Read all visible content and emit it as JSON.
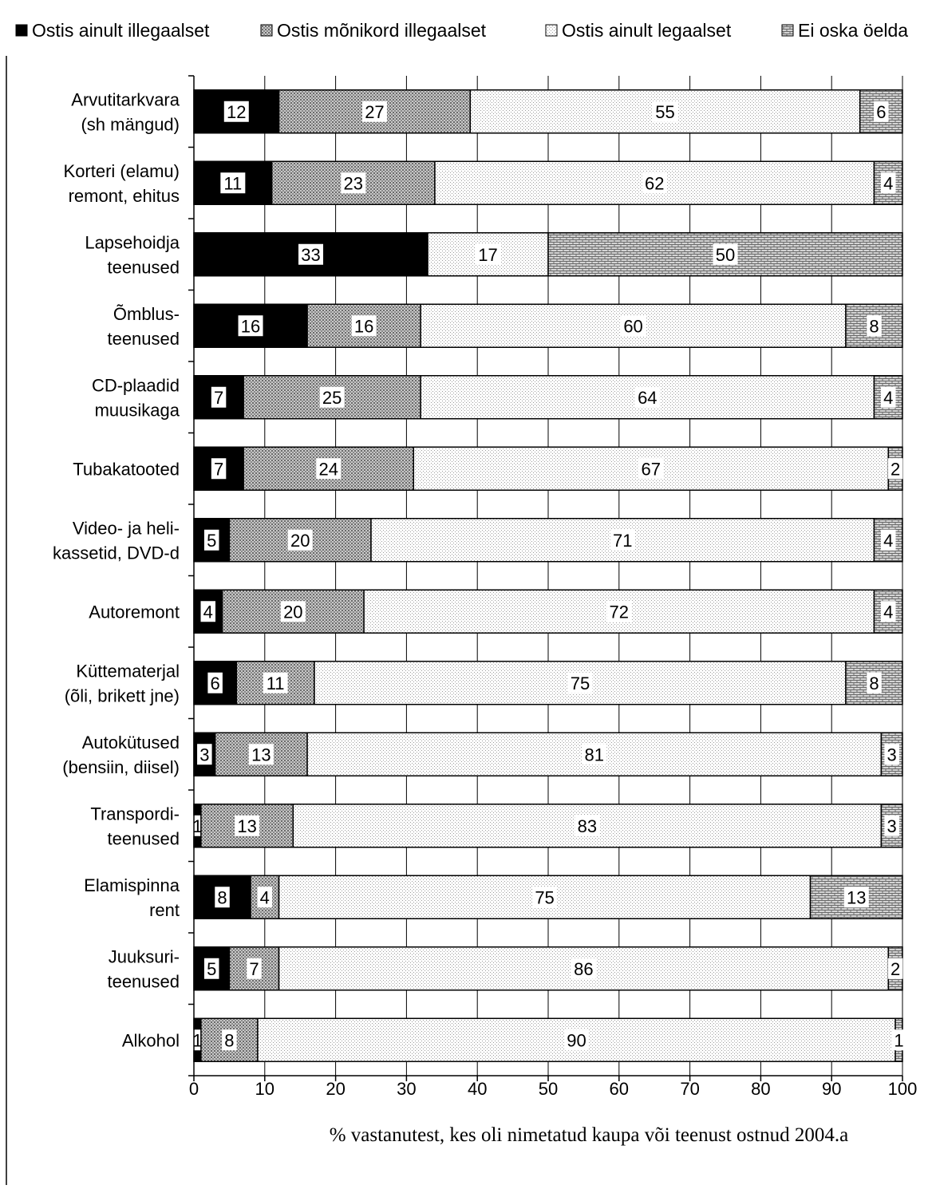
{
  "chart_data": {
    "type": "bar",
    "orientation": "horizontal",
    "stacked": true,
    "title": "",
    "xlabel": "% vastanutest, kes oli nimetatud kaupa või teenust ostnud 2004.a",
    "ylabel": "",
    "xlim": [
      0,
      100
    ],
    "xticks": [
      "0",
      "10",
      "20",
      "30",
      "40",
      "50",
      "60",
      "70",
      "80",
      "90",
      "100"
    ],
    "grid": true,
    "legend_position": "top",
    "categories": [
      [
        "Arvutitarkvara",
        "(sh mängud)"
      ],
      [
        "Korteri (elamu)",
        "remont, ehitus"
      ],
      [
        "Lapsehoidja",
        "teenused"
      ],
      [
        "Õmblus-",
        "teenused"
      ],
      [
        "CD-plaadid",
        "muusikaga"
      ],
      [
        "Tubakatooted"
      ],
      [
        "Video- ja heli-",
        "kassetid, DVD-d"
      ],
      [
        "Autoremont"
      ],
      [
        "Küttematerjal",
        "(õli, brikett jne)"
      ],
      [
        "Autokütused",
        "(bensiin, diisel)"
      ],
      [
        "Transpordi-",
        "teenused"
      ],
      [
        "Elamispinna",
        "rent"
      ],
      [
        "Juuksuri-",
        "teenused"
      ],
      [
        "Alkohol"
      ]
    ],
    "series": [
      {
        "name": "Ostis ainult illegaalset",
        "pattern": "solid",
        "color": "#000000",
        "values": [
          12,
          11,
          33,
          16,
          7,
          7,
          5,
          4,
          6,
          3,
          1,
          8,
          5,
          1
        ]
      },
      {
        "name": "Ostis mõnikord illegaalset",
        "pattern": "dots-dense",
        "color": "#b0b0b0",
        "values": [
          27,
          23,
          0,
          16,
          25,
          24,
          20,
          20,
          11,
          13,
          13,
          4,
          7,
          8
        ]
      },
      {
        "name": "Ostis ainult legaalset",
        "pattern": "dots-sparse",
        "color": "#e8e8e8",
        "values": [
          55,
          62,
          17,
          60,
          64,
          67,
          71,
          72,
          75,
          81,
          83,
          75,
          86,
          90
        ]
      },
      {
        "name": "Ei oska öelda",
        "pattern": "bricks",
        "color": "#9a9a9a",
        "values": [
          6,
          4,
          50,
          8,
          4,
          2,
          4,
          4,
          8,
          3,
          3,
          13,
          2,
          1
        ]
      }
    ]
  }
}
